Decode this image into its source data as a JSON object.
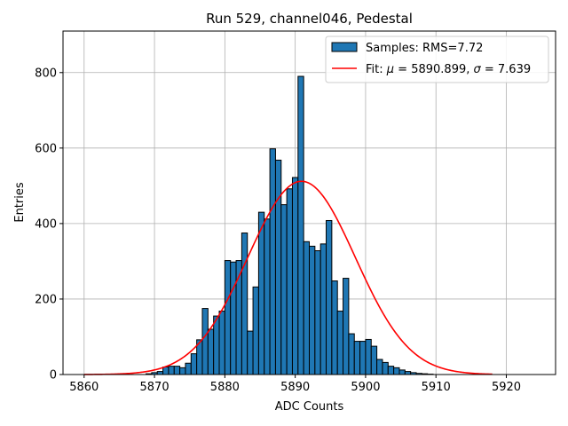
{
  "chart_data": {
    "type": "bar",
    "title": "Run 529, channel046, Pedestal",
    "xlabel": "ADC Counts",
    "ylabel": "Entries",
    "xlim": [
      5857,
      5927
    ],
    "ylim": [
      0,
      910
    ],
    "xticks": [
      5860,
      5870,
      5880,
      5890,
      5900,
      5910,
      5920
    ],
    "yticks": [
      0,
      200,
      400,
      600,
      800
    ],
    "grid": true,
    "legend_position": "top-right",
    "bin_width": 0.8,
    "bin_start": 5860,
    "bar_color": "#1f77b4",
    "fit_color": "#ff0000",
    "counts": [
      0,
      0,
      0,
      0,
      0,
      0,
      0,
      0,
      0,
      0,
      0,
      2,
      5,
      8,
      20,
      22,
      22,
      18,
      30,
      55,
      92,
      175,
      120,
      155,
      168,
      302,
      298,
      302,
      375,
      115,
      232,
      430,
      412,
      598,
      568,
      450,
      492,
      522,
      790,
      352,
      340,
      328,
      346,
      408,
      248,
      168,
      255,
      108,
      88,
      88,
      93,
      75,
      40,
      32,
      22,
      18,
      12,
      8,
      5,
      3,
      2,
      1,
      0
    ],
    "series": [
      {
        "name": "Samples: RMS=7.72",
        "kind": "histogram"
      },
      {
        "name": "Fit: μ = 5890.899, σ = 7.639",
        "kind": "gaussian",
        "mu": 5890.899,
        "sigma": 7.639,
        "amplitude": 512,
        "x_range": [
          5860,
          5918
        ]
      }
    ],
    "legend": {
      "hist_label_prefix": "Samples: RMS=7.72",
      "fit_label_part1": "Fit: ",
      "fit_mu_symbol": "μ",
      "fit_label_part2": " = 5890.899, ",
      "fit_sigma_symbol": "σ",
      "fit_label_part3": " = 7.639"
    }
  }
}
